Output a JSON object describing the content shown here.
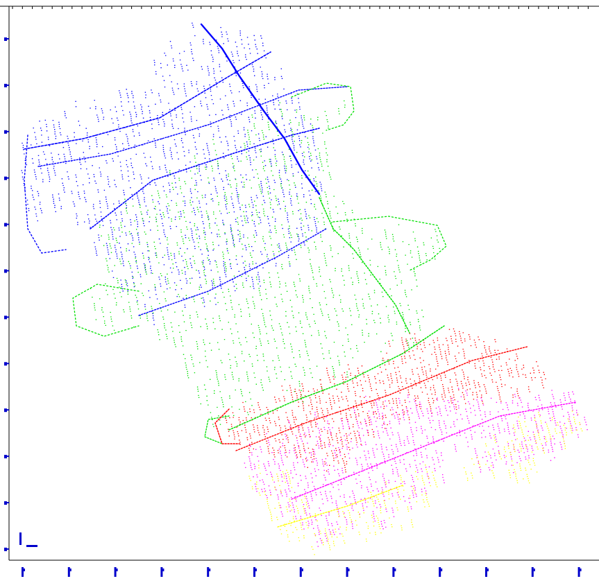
{
  "map": {
    "background": "#ffffff",
    "frame_color": "#000000",
    "tick_color": "#0000cc",
    "left_tick_count": 12,
    "bottom_tick_count": 13,
    "top_tick_count": 60,
    "scale_marker_color": "#0000cc"
  },
  "surveys": [
    {
      "id": "survey-1",
      "color": "#0000ff",
      "color_name": "blue"
    },
    {
      "id": "survey-2",
      "color": "#00e000",
      "color_name": "green"
    },
    {
      "id": "survey-3",
      "color": "#ff0000",
      "color_name": "red"
    },
    {
      "id": "survey-4",
      "color": "#ff00ff",
      "color_name": "magenta"
    },
    {
      "id": "survey-5",
      "color": "#ffff00",
      "color_name": "yellow"
    }
  ]
}
